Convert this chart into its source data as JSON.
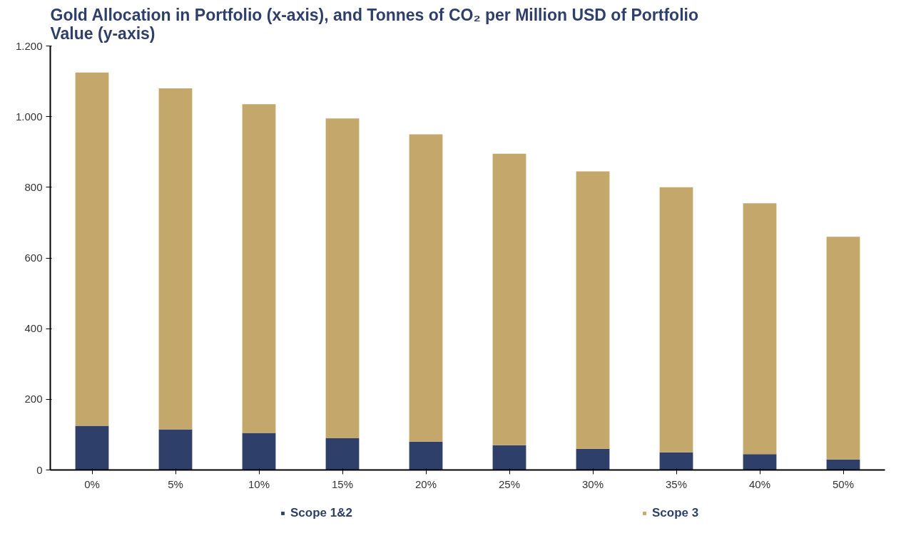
{
  "chart_data": {
    "type": "bar",
    "title": "Gold Allocation in Portfolio (x-axis), and Tonnes of CO₂ per Million USD of Portfolio Value (y-axis)",
    "categories": [
      "0%",
      "5%",
      "10%",
      "15%",
      "20%",
      "25%",
      "30%",
      "35%",
      "40%",
      "50%"
    ],
    "stacked": true,
    "series": [
      {
        "name": "Scope 1&2",
        "color": "#2e3f6a",
        "values": [
          125,
          115,
          105,
          90,
          80,
          70,
          60,
          50,
          45,
          30
        ]
      },
      {
        "name": "Scope 3",
        "color": "#c3a76b",
        "values": [
          1000,
          965,
          930,
          905,
          870,
          825,
          785,
          750,
          710,
          630
        ]
      }
    ],
    "ylim": [
      0,
      1200
    ],
    "yticks": [
      0,
      200,
      400,
      600,
      800,
      {
        "value": 1000,
        "label": "1.000"
      },
      {
        "value": 1200,
        "label": "1.200"
      }
    ],
    "grid": false,
    "legend": "bottom"
  }
}
